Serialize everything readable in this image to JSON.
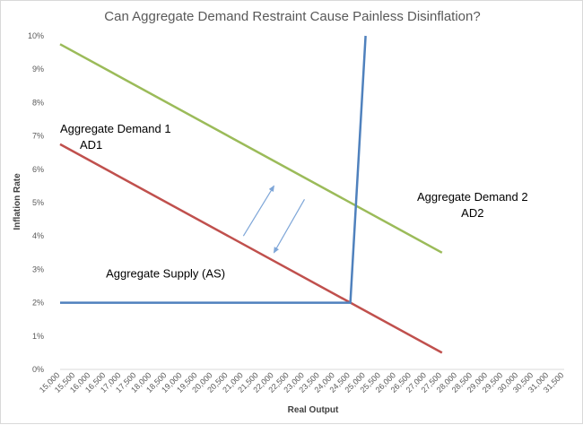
{
  "chart_data": {
    "type": "line",
    "title": "Can Aggregate Demand Restraint Cause Painless Disinflation?",
    "xlabel": "Real Output",
    "ylabel": "Inflation Rate",
    "x_categories": [
      "15,000",
      "15,500",
      "16,000",
      "16,500",
      "17,000",
      "17,500",
      "18,000",
      "18,500",
      "19,000",
      "19,500",
      "20,000",
      "20,500",
      "21,000",
      "21,500",
      "22,000",
      "22,500",
      "23,000",
      "23,500",
      "24,000",
      "24,500",
      "25,000",
      "25,500",
      "26,000",
      "26,500",
      "27,000",
      "27,500",
      "28,000",
      "28,500",
      "29,000",
      "29,500",
      "30,000",
      "30,500",
      "31,000",
      "31,500"
    ],
    "xlim": [
      15000,
      31500
    ],
    "ylim": [
      0,
      10
    ],
    "y_ticks": [
      "0%",
      "1%",
      "2%",
      "3%",
      "4%",
      "5%",
      "6%",
      "7%",
      "8%",
      "9%",
      "10%"
    ],
    "grid": false,
    "legend": "none",
    "series": [
      {
        "color": "#9bbb59",
        "points": [
          [
            15000,
            9.75
          ],
          [
            27500,
            3.5
          ]
        ]
      },
      {
        "color": "#c0504d",
        "points": [
          [
            15000,
            6.75
          ],
          [
            27500,
            0.5
          ]
        ]
      },
      {
        "color": "#4f81bd",
        "points": [
          [
            15000,
            2
          ],
          [
            24500,
            2
          ],
          [
            25000,
            10
          ]
        ]
      }
    ],
    "arrows": [
      {
        "color": "#7ea6d8",
        "from": [
          21000,
          4.0
        ],
        "to": [
          22000,
          5.5
        ]
      },
      {
        "color": "#7ea6d8",
        "from": [
          23000,
          5.1
        ],
        "to": [
          22000,
          3.5
        ]
      }
    ],
    "annotations": [
      {
        "lines": [
          "Aggregate Demand 1",
          "AD1"
        ],
        "at": [
          15000,
          7.1
        ],
        "align": "left"
      },
      {
        "lines": [
          "Aggregate Demand 2",
          "AD2"
        ],
        "at": [
          28500,
          5.05
        ],
        "align": "center"
      },
      {
        "lines": [
          "Aggregate Supply (AS)"
        ],
        "at": [
          16500,
          2.75
        ],
        "align": "left"
      }
    ]
  }
}
